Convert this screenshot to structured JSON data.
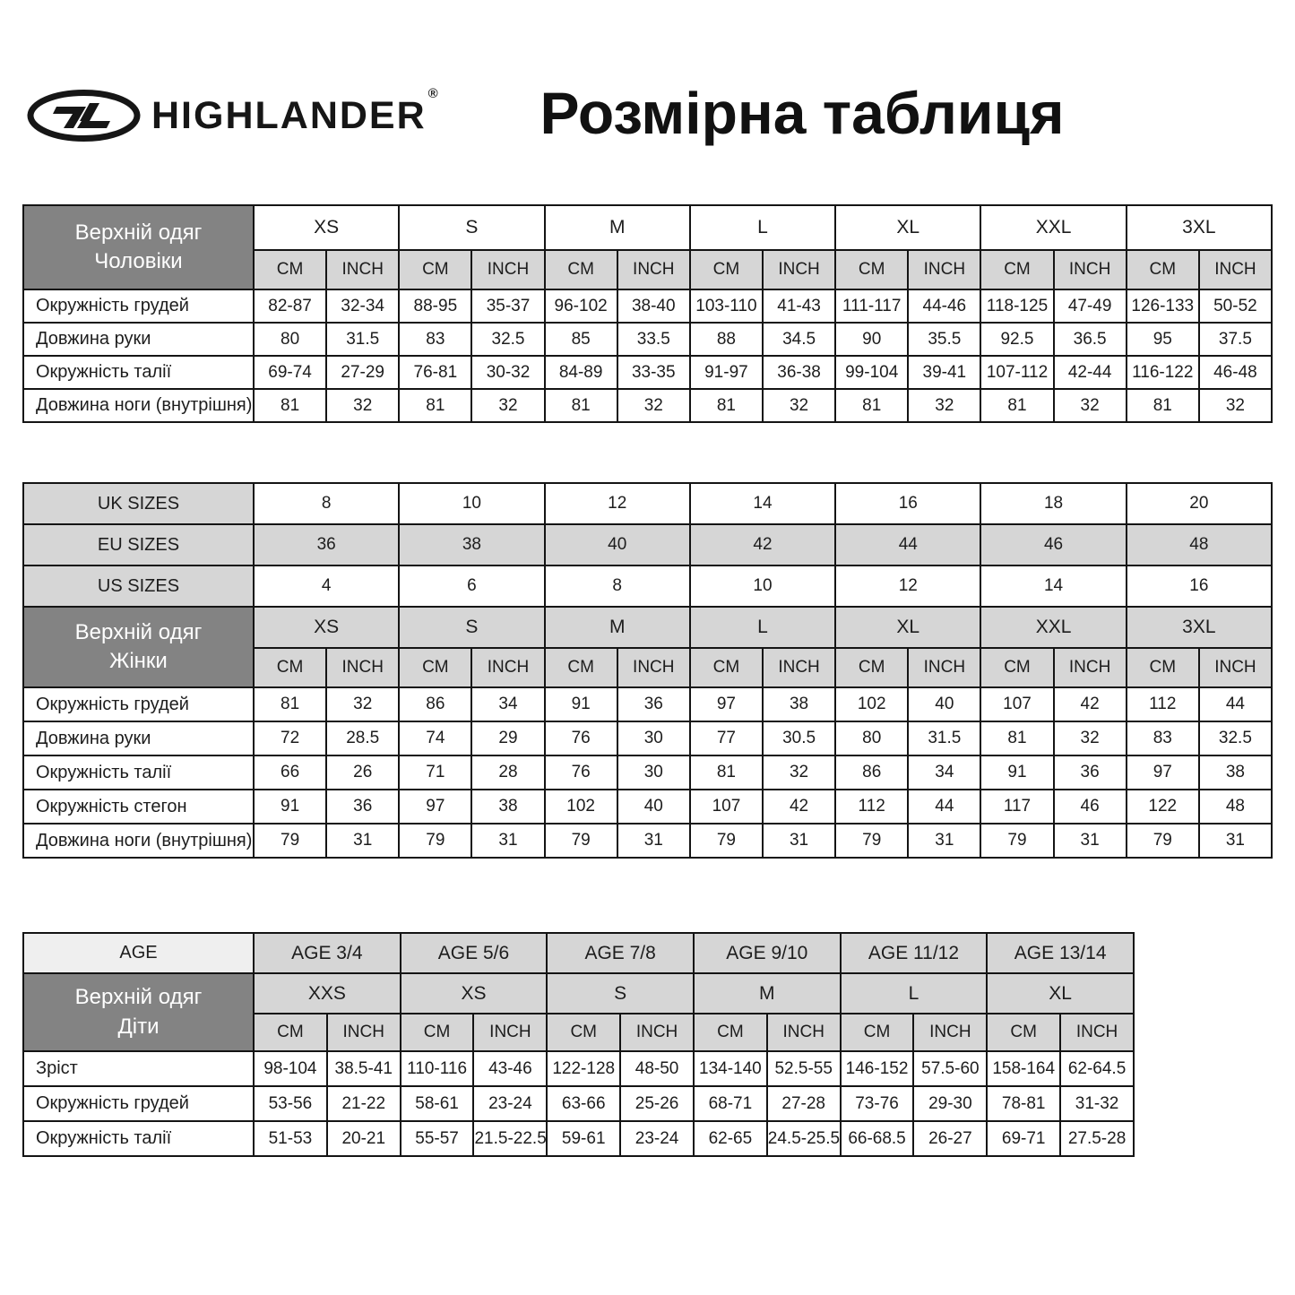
{
  "brand": {
    "name": "HIGHLANDER",
    "reg": "®"
  },
  "title": "Розмірна таблиця",
  "colors": {
    "dark_header": "#838383",
    "light_cell": "#d6d6d6",
    "lighter_cell": "#efefef",
    "border": "#141414",
    "header_text": "#ffffff",
    "text": "#1d1d1d"
  },
  "units": [
    "CM",
    "INCH"
  ],
  "men": {
    "header_lines": [
      "Верхній одяг",
      "Чоловіки"
    ],
    "sizes": [
      "XS",
      "S",
      "M",
      "L",
      "XL",
      "XXL",
      "3XL"
    ],
    "rows": [
      {
        "label": "Окружність грудей",
        "values": [
          "82-87",
          "32-34",
          "88-95",
          "35-37",
          "96-102",
          "38-40",
          "103-110",
          "41-43",
          "111-117",
          "44-46",
          "118-125",
          "47-49",
          "126-133",
          "50-52"
        ]
      },
      {
        "label": "Довжина руки",
        "values": [
          "80",
          "31.5",
          "83",
          "32.5",
          "85",
          "33.5",
          "88",
          "34.5",
          "90",
          "35.5",
          "92.5",
          "36.5",
          "95",
          "37.5"
        ]
      },
      {
        "label": "Окружність талії",
        "values": [
          "69-74",
          "27-29",
          "76-81",
          "30-32",
          "84-89",
          "33-35",
          "91-97",
          "36-38",
          "99-104",
          "39-41",
          "107-112",
          "42-44",
          "116-122",
          "46-48"
        ]
      },
      {
        "label": "Довжина ноги (внутрішня)",
        "values": [
          "81",
          "32",
          "81",
          "32",
          "81",
          "32",
          "81",
          "32",
          "81",
          "32",
          "81",
          "32",
          "81",
          "32"
        ]
      }
    ]
  },
  "conversion": {
    "rows": [
      {
        "label": "UK SIZES",
        "values": [
          "8",
          "10",
          "12",
          "14",
          "16",
          "18",
          "20"
        ],
        "shaded": false
      },
      {
        "label": "EU SIZES",
        "values": [
          "36",
          "38",
          "40",
          "42",
          "44",
          "46",
          "48"
        ],
        "shaded": true
      },
      {
        "label": "US SIZES",
        "values": [
          "4",
          "6",
          "8",
          "10",
          "12",
          "14",
          "16"
        ],
        "shaded": false
      }
    ]
  },
  "women": {
    "header_lines": [
      "Верхній одяг",
      "Жінки"
    ],
    "sizes": [
      "XS",
      "S",
      "M",
      "L",
      "XL",
      "XXL",
      "3XL"
    ],
    "rows": [
      {
        "label": "Окружність грудей",
        "values": [
          "81",
          "32",
          "86",
          "34",
          "91",
          "36",
          "97",
          "38",
          "102",
          "40",
          "107",
          "42",
          "112",
          "44"
        ]
      },
      {
        "label": "Довжина руки",
        "values": [
          "72",
          "28.5",
          "74",
          "29",
          "76",
          "30",
          "77",
          "30.5",
          "80",
          "31.5",
          "81",
          "32",
          "83",
          "32.5"
        ]
      },
      {
        "label": "Окружність талії",
        "values": [
          "66",
          "26",
          "71",
          "28",
          "76",
          "30",
          "81",
          "32",
          "86",
          "34",
          "91",
          "36",
          "97",
          "38"
        ]
      },
      {
        "label": "Окружність стегон",
        "values": [
          "91",
          "36",
          "97",
          "38",
          "102",
          "40",
          "107",
          "42",
          "112",
          "44",
          "117",
          "46",
          "122",
          "48"
        ]
      },
      {
        "label": "Довжина ноги (внутрішня)",
        "values": [
          "79",
          "31",
          "79",
          "31",
          "79",
          "31",
          "79",
          "31",
          "79",
          "31",
          "79",
          "31",
          "79",
          "31"
        ]
      }
    ]
  },
  "kids": {
    "age_label": "AGE",
    "ages": [
      "AGE 3/4",
      "AGE 5/6",
      "AGE 7/8",
      "AGE 9/10",
      "AGE 11/12",
      "AGE 13/14"
    ],
    "header_lines": [
      "Верхній одяг",
      "Діти"
    ],
    "sizes": [
      "XXS",
      "XS",
      "S",
      "M",
      "L",
      "XL"
    ],
    "rows": [
      {
        "label": "Зріст",
        "values": [
          "98-104",
          "38.5-41",
          "110-116",
          "43-46",
          "122-128",
          "48-50",
          "134-140",
          "52.5-55",
          "146-152",
          "57.5-60",
          "158-164",
          "62-64.5"
        ]
      },
      {
        "label": "Окружність грудей",
        "values": [
          "53-56",
          "21-22",
          "58-61",
          "23-24",
          "63-66",
          "25-26",
          "68-71",
          "27-28",
          "73-76",
          "29-30",
          "78-81",
          "31-32"
        ]
      },
      {
        "label": "Окружність талії",
        "values": [
          "51-53",
          "20-21",
          "55-57",
          "21.5-22.5",
          "59-61",
          "23-24",
          "62-65",
          "24.5-25.5",
          "66-68.5",
          "26-27",
          "69-71",
          "27.5-28"
        ]
      }
    ]
  }
}
